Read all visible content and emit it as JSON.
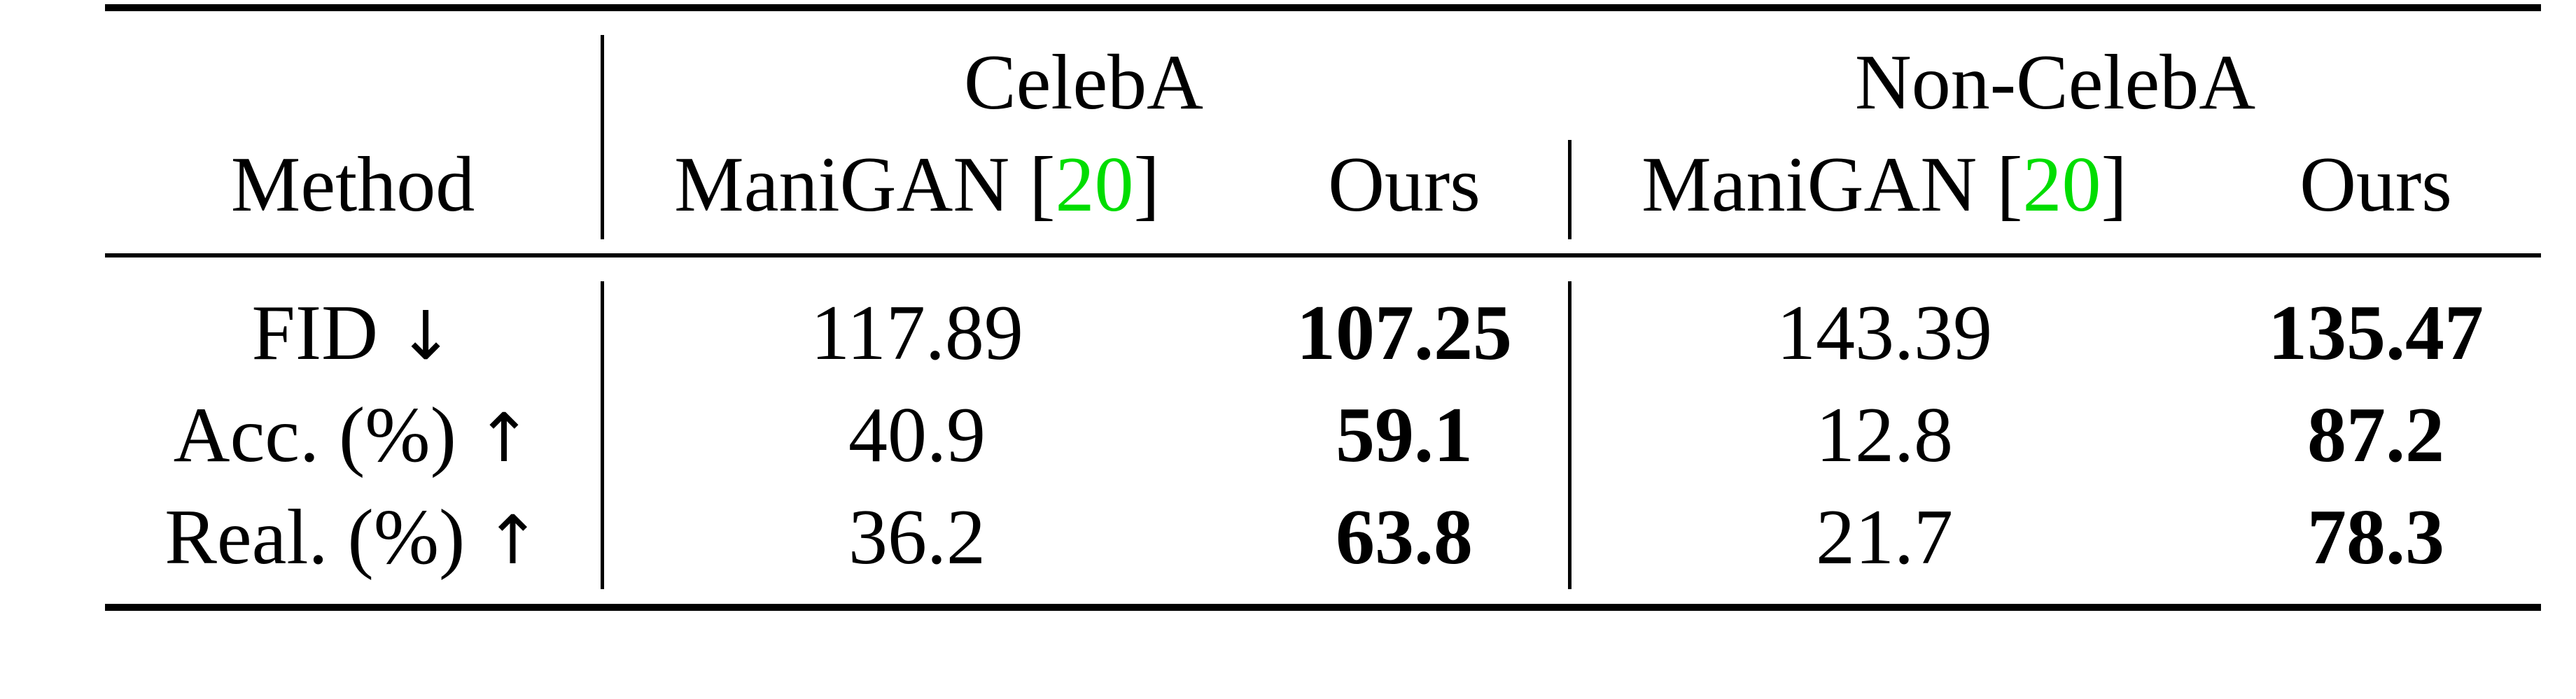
{
  "table": {
    "header": {
      "method_label": "Method",
      "groups": [
        {
          "name": "CelebA",
          "columns": [
            {
              "name": "ManiGAN",
              "cite_open": "[",
              "cite": "20",
              "cite_close": "]"
            },
            {
              "name": "Ours"
            }
          ]
        },
        {
          "name": "Non-CelebA",
          "columns": [
            {
              "name": "ManiGAN",
              "cite_open": "[",
              "cite": "20",
              "cite_close": "]"
            },
            {
              "name": "Ours"
            }
          ]
        }
      ]
    },
    "rows": [
      {
        "metric": "FID",
        "arrow": "↓",
        "values": [
          "117.89",
          "107.25",
          "143.39",
          "135.47"
        ],
        "best": [
          1,
          3
        ]
      },
      {
        "metric": "Acc. (%)",
        "arrow": "↑",
        "values": [
          "40.9",
          "59.1",
          "12.8",
          "87.2"
        ],
        "best": [
          1,
          3
        ]
      },
      {
        "metric": "Real. (%)",
        "arrow": "↑",
        "values": [
          "36.2",
          "63.8",
          "21.7",
          "78.3"
        ],
        "best": [
          1,
          3
        ]
      }
    ]
  },
  "colors": {
    "citation": "#00dd00",
    "text": "#000000"
  }
}
